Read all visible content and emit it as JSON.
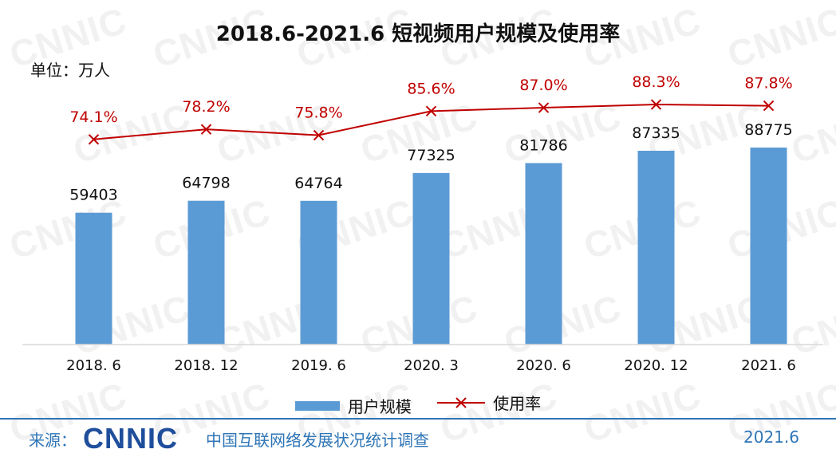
{
  "title": "2018.6-2021.6 短视频用户规模及使用率",
  "unit_label": "单位：万人",
  "watermark_text": "CNNIC",
  "legend": {
    "bar_label": "用户规模",
    "line_label": "使用率"
  },
  "colors": {
    "bar": "#5b9bd5",
    "line": "#c00000",
    "footer": "#2e75b6",
    "logo": "#1f4e9c"
  },
  "footer": {
    "source_prefix": "来源：",
    "logo_text": "CNNIC",
    "source_name": "中国互联网络发展状况统计调查",
    "date": "2021.6"
  },
  "chart_data": {
    "type": "bar",
    "categories": [
      "2018. 6",
      "2018. 12",
      "2019. 6",
      "2020. 3",
      "2020. 6",
      "2020. 12",
      "2021. 6"
    ],
    "series": [
      {
        "name": "用户规模",
        "type": "bar",
        "values": [
          59403,
          64798,
          64764,
          77325,
          81786,
          87335,
          88775
        ]
      },
      {
        "name": "使用率",
        "type": "line",
        "values": [
          74.1,
          78.2,
          75.8,
          85.6,
          87.0,
          88.3,
          87.8
        ],
        "labels": [
          "74.1%",
          "78.2%",
          "75.8%",
          "85.6%",
          "87.0%",
          "88.3%",
          "87.8%"
        ]
      }
    ],
    "bar_value_labels": [
      "59403",
      "64798",
      "64764",
      "77325",
      "81786",
      "87335",
      "88775"
    ],
    "ylim_bar": [
      0,
      88775
    ],
    "ylim_line": [
      0,
      100
    ],
    "legend_position": "bottom",
    "grid": false
  }
}
